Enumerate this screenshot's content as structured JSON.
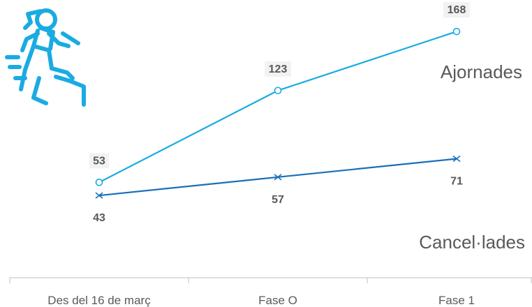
{
  "chart_data": {
    "type": "line",
    "categories": [
      "Des del 16 de març",
      "Fase O",
      "Fase 1"
    ],
    "series": [
      {
        "name": "Ajornades",
        "values": [
          53,
          123,
          168
        ],
        "color": "#1aabe2",
        "marker": "circle"
      },
      {
        "name": "Cancel·lades",
        "values": [
          43,
          57,
          71
        ],
        "color": "#1a6fb8",
        "marker": "x"
      }
    ],
    "ylim": [
      0,
      180
    ],
    "grid": false,
    "legend": "inline-right",
    "icon": "running-person-icon",
    "icon_color": "#1aabe2"
  }
}
